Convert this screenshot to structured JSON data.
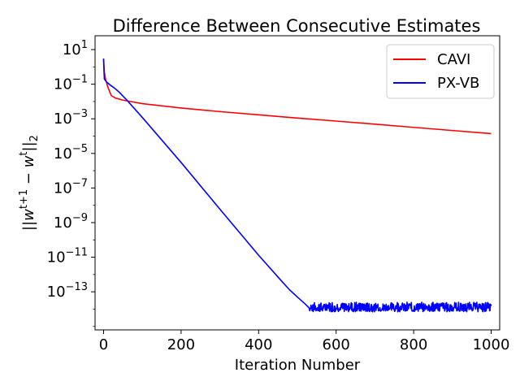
{
  "chart_data": {
    "type": "line",
    "title": "Difference Between Consecutive Estimates",
    "xlabel": "Iteration Number",
    "ylabel": "||w^{t+1} - w^{t}||_2",
    "xlim": [
      -22,
      1022
    ],
    "ylim_log10": [
      -15.2,
      1.8
    ],
    "y_scale": "log",
    "grid": false,
    "legend_position": "top-right",
    "x_ticks": [
      0,
      200,
      400,
      600,
      800,
      1000
    ],
    "y_ticks": [
      {
        "exp": 1,
        "label": "1"
      },
      {
        "exp": -1,
        "label": "−1"
      },
      {
        "exp": -3,
        "label": "−3"
      },
      {
        "exp": -5,
        "label": "−5"
      },
      {
        "exp": -7,
        "label": "−7"
      },
      {
        "exp": -9,
        "label": "−9"
      },
      {
        "exp": -11,
        "label": "−11"
      },
      {
        "exp": -13,
        "label": "−13"
      }
    ],
    "series": [
      {
        "name": "CAVI",
        "color": "#ff0000",
        "x": [
          0,
          2,
          5,
          10,
          15,
          20,
          30,
          50,
          100,
          200,
          300,
          400,
          500,
          600,
          700,
          800,
          900,
          1000
        ],
        "y": [
          3.0,
          0.5,
          0.2,
          0.08,
          0.04,
          0.022,
          0.016,
          0.012,
          0.0075,
          0.0042,
          0.0026,
          0.0017,
          0.0011,
          0.00074,
          0.00049,
          0.00032,
          0.00021,
          0.00014
        ]
      },
      {
        "name": "PX-VB",
        "color": "#0000ff",
        "x": [
          0,
          1,
          2,
          5,
          10,
          20,
          30,
          40,
          60,
          100,
          200,
          300,
          400,
          460,
          480,
          500,
          520,
          530
        ],
        "y": [
          3.0,
          0.6,
          0.2,
          0.16,
          0.12,
          0.08,
          0.055,
          0.035,
          0.012,
          0.0012,
          3e-06,
          6e-09,
          1.3e-11,
          4e-13,
          1.3e-13,
          5e-14,
          2e-14,
          1.2e-14
        ],
        "noise_floor": {
          "x_start": 530,
          "x_end": 1000,
          "y_low": 7e-15,
          "y_high": 2.5e-14
        }
      }
    ]
  }
}
